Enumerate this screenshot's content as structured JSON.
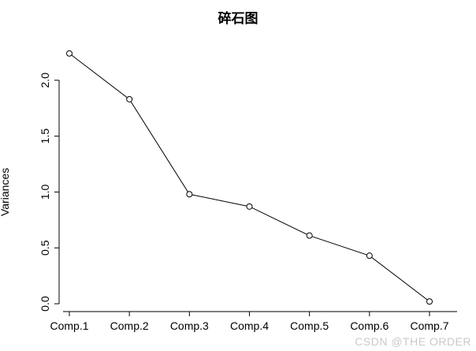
{
  "watermark": {
    "text": "CSDN @THE ORDER",
    "color": "#c9c9c9"
  },
  "chart_data": {
    "type": "line",
    "title": "碎石图",
    "xlabel": "",
    "ylabel": "Variances",
    "categories": [
      "Comp.1",
      "Comp.2",
      "Comp.3",
      "Comp.4",
      "Comp.5",
      "Comp.6",
      "Comp.7"
    ],
    "values": [
      2.24,
      1.83,
      0.98,
      0.87,
      0.61,
      0.43,
      0.02
    ],
    "yticks": [
      0.0,
      0.5,
      1.0,
      1.5,
      2.0
    ],
    "ylim": [
      -0.07,
      2.33
    ],
    "grid": false,
    "legend": "none",
    "marker": "open-circle",
    "line_color": "#000000",
    "text_color": "#000000",
    "background": "#ffffff"
  }
}
